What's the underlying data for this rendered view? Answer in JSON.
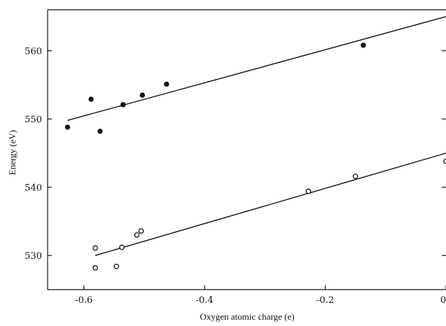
{
  "chart_data": {
    "type": "scatter",
    "title": "",
    "xlabel": "Oxygen atomic charge (e)",
    "ylabel": "Energy (eV)",
    "xlim": [
      -0.66,
      0.0
    ],
    "ylim": [
      525,
      566
    ],
    "xticks": [
      -0.6,
      -0.4,
      -0.2,
      0
    ],
    "xtick_labels": [
      "-0.6",
      "-0.4",
      "-0.2",
      "0"
    ],
    "yticks": [
      530,
      540,
      550,
      560
    ],
    "ytick_labels": [
      "530",
      "540",
      "550",
      "560"
    ],
    "grid": false,
    "legend": "none",
    "series": [
      {
        "marker": "filled-circle",
        "points": [
          {
            "x": -0.627,
            "y": 548.8
          },
          {
            "x": -0.588,
            "y": 552.9
          },
          {
            "x": -0.573,
            "y": 548.2
          },
          {
            "x": -0.535,
            "y": 552.1
          },
          {
            "x": -0.503,
            "y": 553.5
          },
          {
            "x": -0.463,
            "y": 555.1
          },
          {
            "x": -0.137,
            "y": 560.8
          }
        ],
        "fit": {
          "x": [
            -0.627,
            0.0
          ],
          "y": [
            549.8,
            565.0
          ]
        }
      },
      {
        "marker": "open-circle",
        "points": [
          {
            "x": -0.581,
            "y": 531.1
          },
          {
            "x": -0.581,
            "y": 528.2
          },
          {
            "x": -0.546,
            "y": 528.4
          },
          {
            "x": -0.537,
            "y": 531.2
          },
          {
            "x": -0.512,
            "y": 533.0
          },
          {
            "x": -0.505,
            "y": 533.6
          },
          {
            "x": -0.228,
            "y": 539.4
          },
          {
            "x": -0.15,
            "y": 541.6
          },
          {
            "x": 0.0,
            "y": 543.8
          }
        ],
        "fit": {
          "x": [
            -0.581,
            0.0
          ],
          "y": [
            530.0,
            545.0
          ]
        }
      }
    ]
  }
}
